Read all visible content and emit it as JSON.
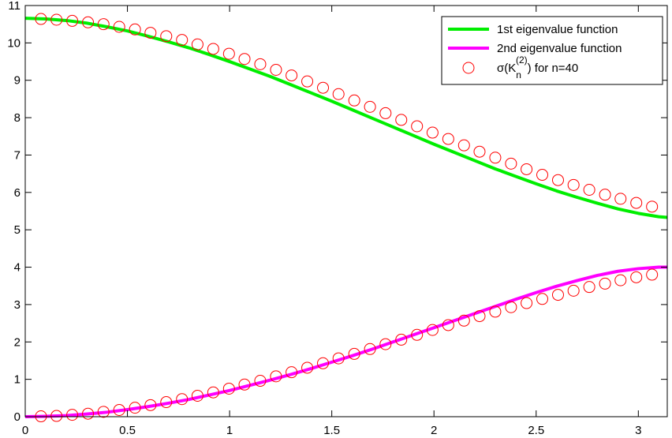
{
  "chart_data": {
    "type": "line",
    "title": "",
    "xlabel": "",
    "ylabel": "",
    "xlim": [
      0,
      3.14159
    ],
    "ylim": [
      0,
      11
    ],
    "grid": false,
    "legend_position": "top-right",
    "x_ticks": [
      "0",
      "0.5",
      "1",
      "1.5",
      "2",
      "2.5",
      "3"
    ],
    "x_tick_values": [
      0,
      0.5,
      1,
      1.5,
      2,
      2.5,
      3
    ],
    "y_ticks": [
      "0",
      "1",
      "2",
      "3",
      "4",
      "5",
      "6",
      "7",
      "8",
      "9",
      "10",
      "11"
    ],
    "y_tick_values": [
      0,
      1,
      2,
      3,
      4,
      5,
      6,
      7,
      8,
      9,
      10,
      11
    ],
    "series": [
      {
        "name": "1st eigenvalue function",
        "kind": "line",
        "color": "#00ee00",
        "x": [
          0,
          0.1,
          0.2,
          0.3,
          0.4,
          0.5,
          0.6,
          0.7,
          0.8,
          0.9,
          1.0,
          1.1,
          1.2,
          1.3,
          1.4,
          1.5,
          1.6,
          1.7,
          1.8,
          1.9,
          2.0,
          2.1,
          2.2,
          2.3,
          2.4,
          2.5,
          2.6,
          2.7,
          2.8,
          2.9,
          3.0,
          3.1,
          3.14159
        ],
        "y": [
          10.66,
          10.64,
          10.6,
          10.53,
          10.43,
          10.32,
          10.18,
          10.03,
          9.87,
          9.69,
          9.5,
          9.3,
          9.1,
          8.88,
          8.66,
          8.44,
          8.21,
          7.98,
          7.75,
          7.52,
          7.29,
          7.07,
          6.85,
          6.63,
          6.43,
          6.23,
          6.04,
          5.87,
          5.71,
          5.56,
          5.44,
          5.35,
          5.33
        ]
      },
      {
        "name": "2nd eigenvalue function",
        "kind": "line",
        "color": "#ff00ff",
        "x": [
          0,
          0.1,
          0.2,
          0.3,
          0.4,
          0.5,
          0.6,
          0.7,
          0.8,
          0.9,
          1.0,
          1.1,
          1.2,
          1.3,
          1.4,
          1.5,
          1.6,
          1.7,
          1.8,
          1.9,
          2.0,
          2.1,
          2.2,
          2.3,
          2.4,
          2.5,
          2.6,
          2.7,
          2.8,
          2.9,
          3.0,
          3.1,
          3.14159
        ],
        "y": [
          0.0,
          0.01,
          0.03,
          0.07,
          0.12,
          0.19,
          0.27,
          0.36,
          0.46,
          0.58,
          0.7,
          0.84,
          0.98,
          1.13,
          1.29,
          1.46,
          1.63,
          1.81,
          2.0,
          2.19,
          2.38,
          2.57,
          2.76,
          2.95,
          3.14,
          3.32,
          3.49,
          3.64,
          3.78,
          3.89,
          3.96,
          4.0,
          4.0
        ]
      },
      {
        "name": "σ(K_n^(2)) for n=40",
        "kind": "scatter",
        "color": "#ff0000",
        "x": [
          0.077,
          0.153,
          0.23,
          0.307,
          0.383,
          0.46,
          0.537,
          0.613,
          0.69,
          0.767,
          0.843,
          0.92,
          0.997,
          1.073,
          1.15,
          1.227,
          1.303,
          1.38,
          1.457,
          1.533,
          1.61,
          1.687,
          1.763,
          1.84,
          1.917,
          1.993,
          2.07,
          2.147,
          2.223,
          2.3,
          2.377,
          2.453,
          2.53,
          2.607,
          2.683,
          2.76,
          2.837,
          2.913,
          2.99,
          3.067
        ],
        "y_upper": [
          10.64,
          10.62,
          10.59,
          10.55,
          10.5,
          10.43,
          10.36,
          10.27,
          10.18,
          10.08,
          9.96,
          9.84,
          9.71,
          9.57,
          9.43,
          9.28,
          9.13,
          8.97,
          8.8,
          8.63,
          8.46,
          8.29,
          8.12,
          7.94,
          7.77,
          7.6,
          7.43,
          7.26,
          7.09,
          6.93,
          6.77,
          6.62,
          6.47,
          6.33,
          6.2,
          6.07,
          5.94,
          5.83,
          5.72,
          5.62
        ],
        "y_lower": [
          0.01,
          0.02,
          0.05,
          0.08,
          0.13,
          0.18,
          0.24,
          0.31,
          0.39,
          0.47,
          0.56,
          0.65,
          0.75,
          0.86,
          0.96,
          1.08,
          1.19,
          1.31,
          1.43,
          1.56,
          1.68,
          1.81,
          1.94,
          2.06,
          2.19,
          2.32,
          2.45,
          2.57,
          2.69,
          2.81,
          2.93,
          3.04,
          3.15,
          3.26,
          3.37,
          3.47,
          3.56,
          3.65,
          3.73,
          3.8
        ]
      }
    ],
    "legend": {
      "entries": [
        {
          "label": "1st eigenvalue function",
          "label_main": "1st eigenvalue function",
          "color": "#00ee00",
          "marker": "line"
        },
        {
          "label": "2nd eigenvalue function",
          "label_main": "2nd eigenvalue function",
          "color": "#ff00ff",
          "marker": "line"
        },
        {
          "label": "σ(K_n^(2)) for n=40",
          "label_prefix": "σ(K",
          "label_sub": "n",
          "label_sup": "(2)",
          "label_suffix": ") for n=40",
          "color": "#ff0000",
          "marker": "circle"
        }
      ]
    }
  }
}
